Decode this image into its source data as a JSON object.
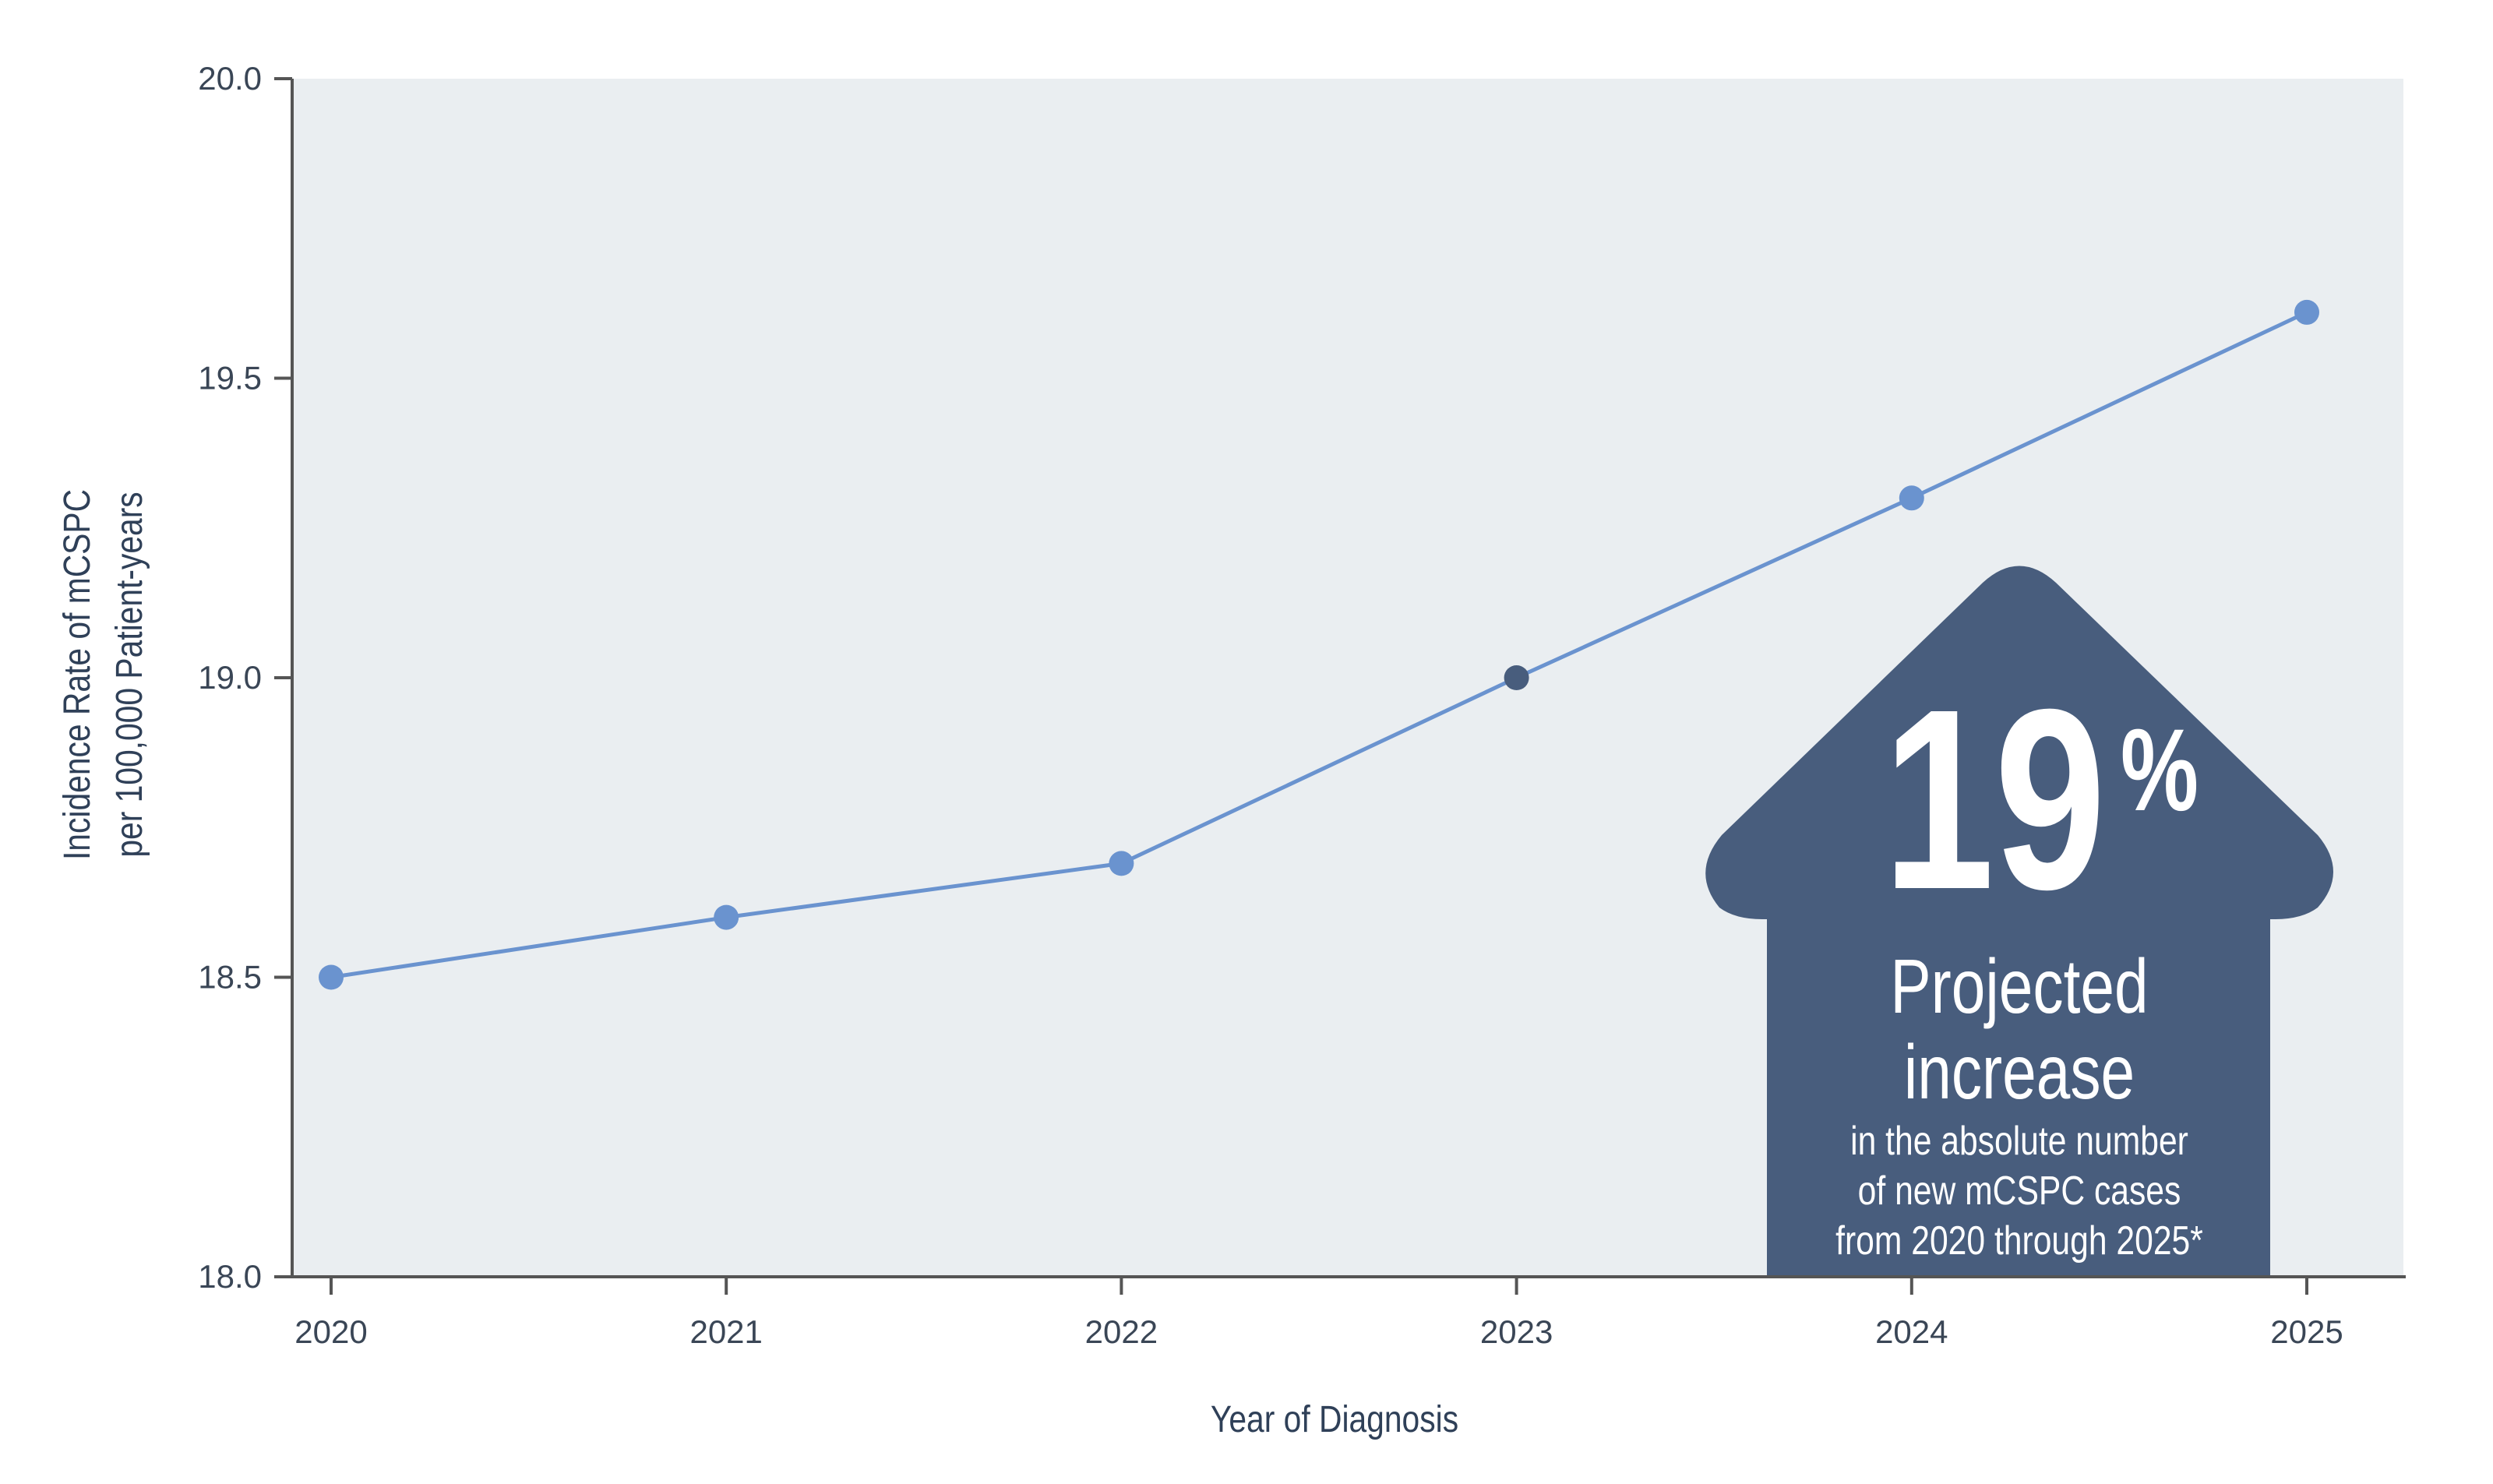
{
  "chart_data": {
    "type": "line",
    "title": "",
    "xlabel": "Year of Diagnosis",
    "ylabel_lines": [
      "Incidence Rate of mCSPC",
      "per 100,000 Patient-years"
    ],
    "categories": [
      "2020",
      "2021",
      "2022",
      "2023",
      "2024",
      "2025"
    ],
    "values": [
      18.5,
      18.6,
      18.69,
      19.0,
      19.3,
      19.61
    ],
    "highlighted_point": "2023",
    "ylim": [
      18.0,
      20.0
    ],
    "yticks": [
      "18.0",
      "18.5",
      "19.0",
      "19.5",
      "20.0"
    ],
    "grid": false,
    "legend": "none",
    "colors": {
      "line": "#6a93cf",
      "highlight": "#485d7d",
      "plot_background": "#eaeef1",
      "arrow": "#485d7d",
      "axis": "#555555"
    },
    "callout": {
      "value": "19",
      "unit": "%",
      "headline_lines": [
        "Projected",
        "increase"
      ],
      "detail_lines": [
        "in the absolute number",
        "of new mCSPC cases",
        "from 2020 through 2025*"
      ],
      "icon": "up-arrow-icon"
    }
  }
}
